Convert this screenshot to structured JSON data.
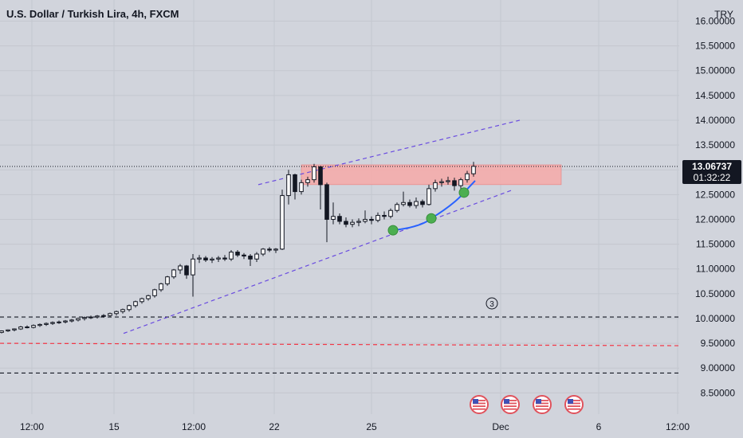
{
  "header": {
    "title": "U.S. Dollar / Turkish Lira, 4h, FXCM"
  },
  "currency_label": "TRY",
  "price_tag": {
    "price": "13.06737",
    "countdown": "01:32:22",
    "color": "#131722"
  },
  "annotation_label": "3",
  "chart_data": {
    "type": "candlestick",
    "y_axis": {
      "min": 8.2,
      "max": 16.2,
      "tick_values": [
        8.5,
        9.0,
        9.5,
        10.0,
        10.5,
        11.0,
        11.5,
        12.0,
        12.5,
        13.0,
        13.5,
        14.0,
        14.5,
        15.0,
        15.5,
        16.0
      ],
      "tick_labels": [
        "8.50000",
        "9.00000",
        "9.50000",
        "10.00000",
        "10.50000",
        "11.00000",
        "11.50000",
        "12.00000",
        "12.50000",
        "13.00000",
        "13.50000",
        "14.00000",
        "14.50000",
        "15.00000",
        "15.50000",
        "16.00000"
      ],
      "side": "right"
    },
    "x_axis": {
      "tick_labels": [
        "12:00",
        "15",
        "12:00",
        "22",
        "25",
        "Dec",
        "6",
        "12:00"
      ]
    },
    "candles": [
      [
        9.72,
        9.76,
        9.7,
        9.75
      ],
      [
        9.75,
        9.78,
        9.73,
        9.77
      ],
      [
        9.77,
        9.8,
        9.74,
        9.79
      ],
      [
        9.79,
        9.85,
        9.77,
        9.83
      ],
      [
        9.83,
        9.86,
        9.8,
        9.82
      ],
      [
        9.82,
        9.88,
        9.8,
        9.86
      ],
      [
        9.86,
        9.9,
        9.83,
        9.88
      ],
      [
        9.88,
        9.92,
        9.85,
        9.9
      ],
      [
        9.9,
        9.94,
        9.87,
        9.92
      ],
      [
        9.92,
        9.96,
        9.89,
        9.93
      ],
      [
        9.93,
        9.97,
        9.9,
        9.95
      ],
      [
        9.95,
        9.99,
        9.92,
        9.97
      ],
      [
        9.97,
        10.02,
        9.94,
        10.0
      ],
      [
        10.0,
        10.04,
        9.96,
        10.02
      ],
      [
        10.02,
        10.06,
        9.99,
        10.03
      ],
      [
        10.03,
        10.07,
        10.0,
        10.05
      ],
      [
        10.05,
        10.09,
        10.02,
        10.06
      ],
      [
        10.06,
        10.12,
        10.03,
        10.1
      ],
      [
        10.1,
        10.16,
        10.06,
        10.14
      ],
      [
        10.14,
        10.2,
        10.1,
        10.18
      ],
      [
        10.18,
        10.28,
        10.14,
        10.26
      ],
      [
        10.26,
        10.36,
        10.22,
        10.34
      ],
      [
        10.34,
        10.42,
        10.3,
        10.4
      ],
      [
        10.4,
        10.48,
        10.36,
        10.46
      ],
      [
        10.46,
        10.6,
        10.42,
        10.58
      ],
      [
        10.58,
        10.72,
        10.54,
        10.7
      ],
      [
        10.7,
        10.86,
        10.66,
        10.84
      ],
      [
        10.84,
        11.0,
        10.8,
        10.98
      ],
      [
        10.98,
        11.1,
        10.9,
        11.06
      ],
      [
        11.06,
        11.08,
        10.8,
        10.88
      ],
      [
        10.88,
        11.3,
        10.44,
        11.2
      ],
      [
        11.2,
        11.28,
        11.12,
        11.22
      ],
      [
        11.22,
        11.26,
        11.14,
        11.18
      ],
      [
        11.18,
        11.24,
        11.12,
        11.2
      ],
      [
        11.2,
        11.26,
        11.14,
        11.22
      ],
      [
        11.22,
        11.28,
        11.16,
        11.2
      ],
      [
        11.2,
        11.38,
        11.16,
        11.34
      ],
      [
        11.34,
        11.38,
        11.24,
        11.28
      ],
      [
        11.28,
        11.32,
        11.2,
        11.26
      ],
      [
        11.26,
        11.3,
        11.06,
        11.2
      ],
      [
        11.2,
        11.34,
        11.14,
        11.3
      ],
      [
        11.3,
        11.42,
        11.26,
        11.4
      ],
      [
        11.4,
        11.44,
        11.34,
        11.38
      ],
      [
        11.38,
        11.42,
        11.32,
        11.4
      ],
      [
        11.4,
        12.6,
        11.38,
        12.48
      ],
      [
        12.48,
        13.0,
        12.3,
        12.9
      ],
      [
        12.9,
        12.92,
        12.4,
        12.56
      ],
      [
        12.56,
        12.8,
        12.5,
        12.74
      ],
      [
        12.74,
        12.86,
        12.66,
        12.8
      ],
      [
        12.8,
        13.12,
        12.74,
        13.06
      ],
      [
        13.06,
        13.08,
        12.2,
        12.7
      ],
      [
        12.7,
        12.74,
        11.54,
        12.0
      ],
      [
        12.0,
        12.34,
        11.9,
        12.06
      ],
      [
        12.06,
        12.12,
        11.9,
        11.96
      ],
      [
        11.96,
        12.04,
        11.84,
        11.9
      ],
      [
        11.9,
        12.0,
        11.84,
        11.94
      ],
      [
        11.94,
        12.02,
        11.86,
        11.96
      ],
      [
        11.96,
        12.18,
        11.92,
        12.0
      ],
      [
        12.0,
        12.06,
        11.9,
        11.98
      ],
      [
        11.98,
        12.14,
        11.94,
        12.08
      ],
      [
        12.08,
        12.16,
        12.0,
        12.06
      ],
      [
        12.06,
        12.22,
        12.02,
        12.18
      ],
      [
        12.18,
        12.34,
        12.14,
        12.3
      ],
      [
        12.3,
        12.56,
        12.26,
        12.34
      ],
      [
        12.34,
        12.4,
        12.24,
        12.28
      ],
      [
        12.28,
        12.44,
        12.22,
        12.36
      ],
      [
        12.36,
        12.4,
        12.24,
        12.3
      ],
      [
        12.3,
        12.7,
        12.28,
        12.62
      ],
      [
        12.62,
        12.8,
        12.56,
        12.74
      ],
      [
        12.74,
        12.82,
        12.66,
        12.76
      ],
      [
        12.76,
        12.86,
        12.7,
        12.78
      ],
      [
        12.78,
        12.84,
        12.58,
        12.68
      ],
      [
        12.68,
        12.84,
        12.62,
        12.8
      ],
      [
        12.8,
        12.98,
        12.74,
        12.92
      ],
      [
        12.92,
        13.16,
        12.86,
        13.07
      ]
    ],
    "horizontal_lines": [
      {
        "price": 10.03,
        "color": "#131722",
        "style": "dashed"
      },
      {
        "price": 9.5,
        "color": "#f23645",
        "style": "dashed"
      },
      {
        "price": 8.9,
        "color": "#131722",
        "style": "dashed"
      }
    ],
    "resistance_zone": {
      "price_low": 12.7,
      "price_high": 13.1,
      "color": "#f7a9a8"
    },
    "channel_upper": {
      "start_price": 12.7,
      "end_price": 14.0,
      "color": "#6a4ce0"
    },
    "channel_lower": {
      "start_price": 9.7,
      "end_price": 12.6,
      "color": "#6a4ce0"
    },
    "curve_color": "#2962ff",
    "curve_points": [
      11.78,
      12.02,
      12.54
    ],
    "point_color": "#4caf50",
    "current_price": 13.06737,
    "grid": true,
    "event_flags": 4
  }
}
